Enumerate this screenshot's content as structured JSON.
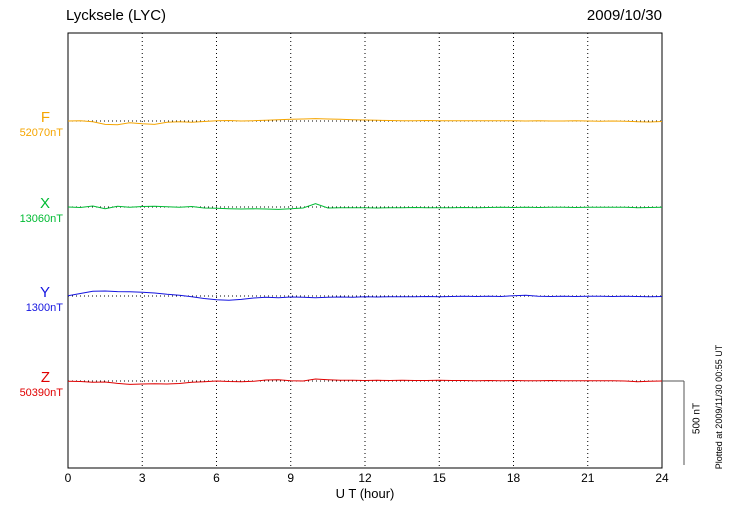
{
  "header": {
    "title": "Lycksele (LYC)",
    "date": "2009/10/30"
  },
  "x_axis": {
    "label": "U T (hour)",
    "ticks": [
      "0",
      "3",
      "6",
      "9",
      "12",
      "15",
      "18",
      "21",
      "24"
    ]
  },
  "scale_bar": {
    "label": "500 nT",
    "value_nT": 500
  },
  "plot_note": "Plotted at 2009/11/30 00:55 UT",
  "chart_data": {
    "type": "line",
    "title": "Lycksele (LYC) magnetogram",
    "station": "Lycksele (LYC)",
    "date": "2009/10/30",
    "xlabel": "U T (hour)",
    "xlim": [
      0,
      24
    ],
    "x_start": 0,
    "x_step_hours": 0.5,
    "grid": "dotted-vertical-every-3h",
    "legend_position": "left-of-traces",
    "scale_bar_nT": 500,
    "series": [
      {
        "name": "F",
        "baseline_value": "52070nT",
        "color": "#f5a500",
        "offsets_nT": [
          0,
          2,
          -5,
          -20,
          -22,
          -10,
          -16,
          -20,
          -8,
          -4,
          -8,
          -3,
          2,
          3,
          0,
          2,
          4,
          8,
          10,
          12,
          14,
          12,
          10,
          8,
          6,
          4,
          3,
          2,
          2,
          3,
          2,
          1,
          2,
          1,
          1,
          2,
          1,
          0,
          1,
          0,
          0,
          1,
          0,
          -1,
          0,
          -2,
          -4,
          -6,
          -3
        ]
      },
      {
        "name": "X",
        "baseline_value": "13060nT",
        "color": "#00bb33",
        "offsets_nT": [
          0,
          -3,
          6,
          -10,
          4,
          -2,
          3,
          5,
          2,
          -2,
          3,
          -6,
          -8,
          -10,
          -12,
          -11,
          -12,
          -14,
          -10,
          -6,
          20,
          -6,
          -5,
          -4,
          -5,
          -6,
          -4,
          -5,
          -3,
          -4,
          -5,
          -4,
          -3,
          -4,
          -3,
          -2,
          -3,
          -2,
          -3,
          -2,
          -2,
          -3,
          -2,
          -2,
          -1,
          -2,
          -4,
          -3,
          -2
        ]
      },
      {
        "name": "Y",
        "baseline_value": "1300nT",
        "color": "#1515e0",
        "offsets_nT": [
          2,
          15,
          28,
          30,
          26,
          25,
          22,
          18,
          10,
          4,
          -5,
          -15,
          -22,
          -25,
          -20,
          -12,
          -8,
          -10,
          -6,
          -8,
          -10,
          -8,
          -6,
          -8,
          -5,
          -6,
          -4,
          -5,
          -4,
          -3,
          -4,
          -3,
          -2,
          -3,
          -2,
          -3,
          2,
          4,
          -2,
          -3,
          -2,
          -3,
          -2,
          -2,
          -3,
          -2,
          -3,
          -4,
          -3
        ]
      },
      {
        "name": "Z",
        "baseline_value": "50390nT",
        "color": "#e00000",
        "offsets_nT": [
          -1,
          -3,
          -8,
          -6,
          -14,
          -20,
          -18,
          -16,
          -18,
          -15,
          -8,
          -4,
          0,
          -3,
          -4,
          -2,
          6,
          8,
          2,
          0,
          12,
          8,
          5,
          4,
          3,
          4,
          3,
          4,
          3,
          3,
          4,
          3,
          3,
          2,
          3,
          2,
          3,
          2,
          2,
          3,
          2,
          2,
          1,
          2,
          1,
          0,
          -4,
          -2,
          0
        ]
      }
    ]
  }
}
